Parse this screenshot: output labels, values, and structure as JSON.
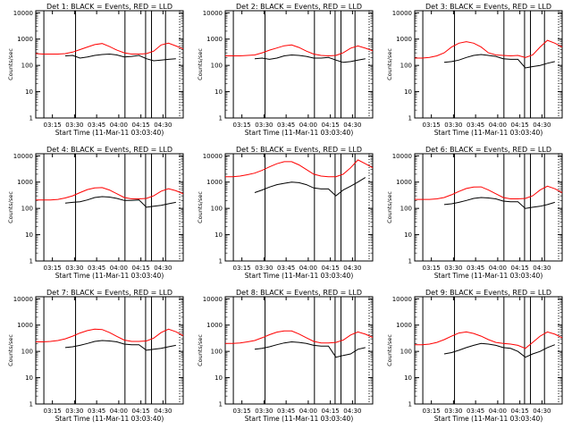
{
  "figure": {
    "xlabel": "Start Time (11-Mar-11 03:03:40)",
    "ylabel": "Counts/sec",
    "x_tick_labels": [
      "03:15",
      "03:30",
      "03:45",
      "04:00",
      "04:15",
      "04:30"
    ],
    "y_tick_labels": [
      "1",
      "10",
      "100",
      "1000",
      "10000"
    ],
    "colors": {
      "events": "#000000",
      "lld": "#ff0000"
    }
  },
  "chart_data": [
    {
      "type": "line",
      "title": "Det 1: BLACK = Events, RED = LLD",
      "x_minutes": [
        0,
        5,
        10,
        15,
        20,
        25,
        30,
        35,
        40,
        45,
        50,
        55,
        60,
        65,
        70,
        75,
        80,
        85,
        90,
        95,
        100
      ],
      "x_ticks": [
        11.3,
        26.3,
        41.3,
        56.3,
        71.3,
        86.3
      ],
      "series": [
        {
          "name": "Events",
          "color": "#000000",
          "values": [
            null,
            null,
            null,
            null,
            230,
            240,
            190,
            210,
            240,
            260,
            270,
            250,
            210,
            220,
            240,
            180,
            150,
            160,
            170,
            180,
            null
          ]
        },
        {
          "name": "LLD",
          "color": "#ff0000",
          "values": [
            280,
            270,
            270,
            270,
            280,
            320,
            400,
            500,
            620,
            680,
            520,
            380,
            300,
            270,
            270,
            280,
            350,
            600,
            700,
            550,
            420
          ]
        }
      ],
      "vlines": [
        5.5,
        27,
        60.5,
        74.5,
        78.5,
        88
      ],
      "ylim": [
        1,
        12000
      ],
      "yscale": "log"
    },
    {
      "type": "line",
      "title": "Det 2: BLACK = Events, RED = LLD",
      "x_minutes": [
        0,
        5,
        10,
        15,
        20,
        25,
        30,
        35,
        40,
        45,
        50,
        55,
        60,
        65,
        70,
        75,
        80,
        85,
        90,
        95,
        100
      ],
      "x_ticks": [
        11.3,
        26.3,
        41.3,
        56.3,
        71.3,
        86.3
      ],
      "series": [
        {
          "name": "Events",
          "color": "#000000",
          "values": [
            null,
            null,
            null,
            null,
            180,
            190,
            170,
            190,
            230,
            250,
            240,
            220,
            190,
            190,
            200,
            160,
            130,
            140,
            160,
            180,
            null
          ]
        },
        {
          "name": "LLD",
          "color": "#ff0000",
          "values": [
            230,
            230,
            230,
            240,
            250,
            300,
            380,
            460,
            560,
            600,
            480,
            350,
            270,
            240,
            230,
            240,
            300,
            450,
            550,
            450,
            360
          ]
        }
      ],
      "vlines": [
        5.5,
        27,
        60.5,
        74.5,
        78.5,
        88
      ],
      "ylim": [
        1,
        12000
      ],
      "yscale": "log"
    },
    {
      "type": "line",
      "title": "Det 3: BLACK = Events, RED = LLD",
      "x_minutes": [
        0,
        5,
        10,
        15,
        20,
        25,
        30,
        35,
        40,
        45,
        50,
        55,
        60,
        65,
        70,
        75,
        80,
        85,
        90,
        95,
        100
      ],
      "x_ticks": [
        11.3,
        26.3,
        41.3,
        56.3,
        71.3,
        86.3
      ],
      "series": [
        {
          "name": "Events",
          "color": "#000000",
          "values": [
            null,
            null,
            null,
            null,
            130,
            140,
            160,
            200,
            240,
            260,
            240,
            220,
            180,
            170,
            170,
            80,
            90,
            100,
            120,
            140,
            null
          ]
        },
        {
          "name": "LLD",
          "color": "#ff0000",
          "values": [
            190,
            190,
            200,
            230,
            300,
            500,
            700,
            800,
            700,
            500,
            300,
            250,
            240,
            230,
            240,
            200,
            250,
            500,
            900,
            700,
            500
          ]
        }
      ],
      "vlines": [
        5.5,
        27,
        60.5,
        74.5,
        78.5,
        88
      ],
      "ylim": [
        1,
        12000
      ],
      "yscale": "log"
    },
    {
      "type": "line",
      "title": "Det 4: BLACK = Events, RED = LLD",
      "x_minutes": [
        0,
        5,
        10,
        15,
        20,
        25,
        30,
        35,
        40,
        45,
        50,
        55,
        60,
        65,
        70,
        75,
        80,
        85,
        90,
        95,
        100
      ],
      "x_ticks": [
        11.3,
        26.3,
        41.3,
        56.3,
        71.3,
        86.3
      ],
      "series": [
        {
          "name": "Events",
          "color": "#000000",
          "values": [
            null,
            null,
            null,
            null,
            160,
            170,
            180,
            210,
            260,
            280,
            270,
            240,
            200,
            200,
            210,
            110,
            120,
            130,
            150,
            170,
            null
          ]
        },
        {
          "name": "LLD",
          "color": "#ff0000",
          "values": [
            210,
            210,
            210,
            220,
            250,
            300,
            400,
            520,
            600,
            620,
            500,
            360,
            260,
            230,
            230,
            240,
            300,
            450,
            560,
            470,
            360
          ]
        }
      ],
      "vlines": [
        5.5,
        27,
        60.5,
        74.5,
        78.5,
        88
      ],
      "ylim": [
        1,
        12000
      ],
      "yscale": "log"
    },
    {
      "type": "line",
      "title": "Det 5: BLACK = Events, RED = LLD",
      "x_minutes": [
        0,
        5,
        10,
        15,
        20,
        25,
        30,
        35,
        40,
        45,
        50,
        55,
        60,
        65,
        70,
        75,
        80,
        85,
        90,
        95,
        100
      ],
      "x_ticks": [
        11.3,
        26.3,
        41.3,
        56.3,
        71.3,
        86.3
      ],
      "series": [
        {
          "name": "Events",
          "color": "#000000",
          "values": [
            null,
            null,
            null,
            null,
            400,
            500,
            650,
            800,
            900,
            1000,
            950,
            800,
            600,
            550,
            550,
            300,
            500,
            700,
            1000,
            1500,
            null
          ]
        },
        {
          "name": "LLD",
          "color": "#ff0000",
          "values": [
            1600,
            1600,
            1700,
            1900,
            2200,
            2800,
            3800,
            5000,
            6000,
            6000,
            4500,
            3000,
            2000,
            1700,
            1600,
            1600,
            2000,
            3500,
            7000,
            5000,
            3500
          ]
        }
      ],
      "vlines": [
        5.5,
        27,
        60.5,
        74.5,
        78.5,
        88
      ],
      "ylim": [
        1,
        12000
      ],
      "yscale": "log"
    },
    {
      "type": "line",
      "title": "Det 6: BLACK = Events, RED = LLD",
      "x_minutes": [
        0,
        5,
        10,
        15,
        20,
        25,
        30,
        35,
        40,
        45,
        50,
        55,
        60,
        65,
        70,
        75,
        80,
        85,
        90,
        95,
        100
      ],
      "x_ticks": [
        11.3,
        26.3,
        41.3,
        56.3,
        71.3,
        86.3
      ],
      "series": [
        {
          "name": "Events",
          "color": "#000000",
          "values": [
            null,
            null,
            null,
            null,
            140,
            150,
            170,
            200,
            240,
            260,
            250,
            230,
            190,
            180,
            180,
            100,
            110,
            120,
            140,
            170,
            null
          ]
        },
        {
          "name": "LLD",
          "color": "#ff0000",
          "values": [
            220,
            220,
            220,
            230,
            260,
            330,
            440,
            570,
            650,
            660,
            500,
            360,
            260,
            230,
            230,
            240,
            300,
            500,
            700,
            560,
            400
          ]
        }
      ],
      "vlines": [
        5.5,
        27,
        60.5,
        74.5,
        78.5,
        88
      ],
      "ylim": [
        1,
        12000
      ],
      "yscale": "log"
    },
    {
      "type": "line",
      "title": "Det 7: BLACK = Events, RED = LLD",
      "x_minutes": [
        0,
        5,
        10,
        15,
        20,
        25,
        30,
        35,
        40,
        45,
        50,
        55,
        60,
        65,
        70,
        75,
        80,
        85,
        90,
        95,
        100
      ],
      "x_ticks": [
        11.3,
        26.3,
        41.3,
        56.3,
        71.3,
        86.3
      ],
      "series": [
        {
          "name": "Events",
          "color": "#000000",
          "values": [
            null,
            null,
            null,
            null,
            140,
            150,
            170,
            200,
            240,
            260,
            250,
            230,
            190,
            180,
            180,
            110,
            120,
            130,
            150,
            170,
            null
          ]
        },
        {
          "name": "LLD",
          "color": "#ff0000",
          "values": [
            230,
            230,
            240,
            260,
            300,
            380,
            500,
            620,
            700,
            680,
            520,
            370,
            270,
            240,
            240,
            250,
            320,
            520,
            700,
            560,
            400
          ]
        }
      ],
      "vlines": [
        5.5,
        27,
        60.5,
        74.5,
        78.5,
        88
      ],
      "ylim": [
        1,
        12000
      ],
      "yscale": "log"
    },
    {
      "type": "line",
      "title": "Det 8: BLACK = Events, RED = LLD",
      "x_minutes": [
        0,
        5,
        10,
        15,
        20,
        25,
        30,
        35,
        40,
        45,
        50,
        55,
        60,
        65,
        70,
        75,
        80,
        85,
        90,
        95,
        100
      ],
      "x_ticks": [
        11.3,
        26.3,
        41.3,
        56.3,
        71.3,
        86.3
      ],
      "series": [
        {
          "name": "Events",
          "color": "#000000",
          "values": [
            null,
            null,
            null,
            null,
            120,
            130,
            150,
            180,
            210,
            230,
            220,
            200,
            170,
            160,
            160,
            60,
            70,
            80,
            120,
            140,
            null
          ]
        },
        {
          "name": "LLD",
          "color": "#ff0000",
          "values": [
            200,
            200,
            210,
            230,
            260,
            330,
            430,
            540,
            600,
            600,
            460,
            330,
            240,
            210,
            210,
            220,
            270,
            420,
            550,
            450,
            340
          ]
        }
      ],
      "vlines": [
        5.5,
        27,
        60.5,
        74.5,
        78.5,
        88
      ],
      "ylim": [
        1,
        12000
      ],
      "yscale": "log"
    },
    {
      "type": "line",
      "title": "Det 9: BLACK = Events, RED = LLD",
      "x_minutes": [
        0,
        5,
        10,
        15,
        20,
        25,
        30,
        35,
        40,
        45,
        50,
        55,
        60,
        65,
        70,
        75,
        80,
        85,
        90,
        95,
        100
      ],
      "x_ticks": [
        11.3,
        26.3,
        41.3,
        56.3,
        71.3,
        86.3
      ],
      "series": [
        {
          "name": "Events",
          "color": "#000000",
          "values": [
            null,
            null,
            null,
            null,
            80,
            90,
            110,
            140,
            170,
            200,
            190,
            170,
            140,
            130,
            100,
            60,
            80,
            100,
            140,
            180,
            null
          ]
        },
        {
          "name": "LLD",
          "color": "#ff0000",
          "values": [
            180,
            180,
            190,
            220,
            280,
            380,
            500,
            550,
            480,
            380,
            280,
            220,
            200,
            190,
            170,
            130,
            220,
            380,
            550,
            450,
            330
          ]
        }
      ],
      "vlines": [
        5.5,
        27,
        60.5,
        74.5,
        78.5,
        88
      ],
      "ylim": [
        1,
        12000
      ],
      "yscale": "log"
    }
  ]
}
